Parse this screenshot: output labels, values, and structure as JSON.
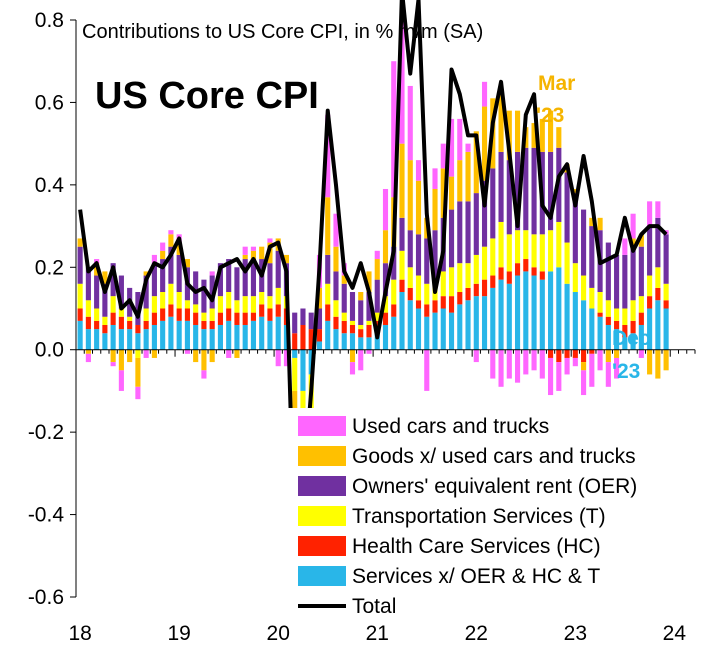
{
  "chart_data": {
    "type": "bar",
    "subtitle": "Contributions to US Core CPI, in % m/m (SA)",
    "title": "US Core CPI",
    "ylim": [
      -0.6,
      0.8
    ],
    "yticks": [
      "0.8",
      "0.6",
      "0.4",
      "0.2",
      "0.0",
      "-0.2",
      "-0.4",
      "-0.6"
    ],
    "ytick_values": [
      0.8,
      0.6,
      0.4,
      0.2,
      0.0,
      -0.2,
      -0.4,
      -0.6
    ],
    "xticks": [
      "18",
      "19",
      "20",
      "21",
      "22",
      "23",
      "24"
    ],
    "xtick_values": [
      0,
      12,
      24,
      36,
      48,
      60,
      72
    ],
    "xlim": [
      0,
      75
    ],
    "annotations": [
      {
        "text": "Mar",
        "color": "#f5b400"
      },
      {
        "text": "'23",
        "color": "#f5b400"
      },
      {
        "text": "Dec",
        "color": "#29b6e8"
      },
      {
        "text": "'23",
        "color": "#29b6e8"
      }
    ],
    "legend": [
      {
        "name": "Used cars and trucks",
        "color": "#ff66ff"
      },
      {
        "name": "Goods x/ used cars and trucks",
        "color": "#ffc000"
      },
      {
        "name": "Owners' equivalent rent (OER)",
        "color": "#7030a0"
      },
      {
        "name": "Transportation Services (T)",
        "color": "#ffff00"
      },
      {
        "name": "Health Care Services (HC)",
        "color": "#ff2200"
      },
      {
        "name": "Services x/ OER & HC & T",
        "color": "#29b6e8"
      },
      {
        "name": "Total",
        "color": "#000000"
      }
    ],
    "stack_order": [
      "Services x/ OER & HC & T",
      "Health Care Services (HC)",
      "Transportation Services (T)",
      "Owners' equivalent rent (OER)",
      "Goods x/ used cars and trucks",
      "Used cars and trucks"
    ],
    "x": [
      0,
      1,
      2,
      3,
      4,
      5,
      6,
      7,
      8,
      9,
      10,
      11,
      12,
      13,
      14,
      15,
      16,
      17,
      18,
      19,
      20,
      21,
      22,
      23,
      24,
      25,
      26,
      27,
      28,
      29,
      30,
      31,
      32,
      33,
      34,
      35,
      36,
      37,
      38,
      39,
      40,
      41,
      42,
      43,
      44,
      45,
      46,
      47,
      48,
      49,
      50,
      51,
      52,
      53,
      54,
      55,
      56,
      57,
      58,
      59,
      60,
      61,
      62,
      63,
      64,
      65,
      66,
      67,
      68,
      69,
      70,
      71
    ],
    "series": [
      {
        "name": "Services x/ OER & HC & T",
        "values": [
          0.07,
          0.05,
          0.05,
          0.04,
          0.06,
          0.05,
          0.05,
          0.04,
          0.05,
          0.06,
          0.07,
          0.08,
          0.07,
          0.07,
          0.06,
          0.05,
          0.05,
          0.06,
          0.07,
          0.06,
          0.06,
          0.07,
          0.08,
          0.07,
          0.08,
          0.06,
          -0.02,
          -0.1,
          -0.06,
          0.02,
          0.07,
          0.05,
          0.04,
          0.04,
          0.03,
          0.03,
          0.04,
          0.06,
          0.08,
          0.14,
          0.12,
          0.1,
          0.08,
          0.09,
          0.1,
          0.09,
          0.11,
          0.12,
          0.13,
          0.13,
          0.15,
          0.17,
          0.16,
          0.18,
          0.19,
          0.18,
          0.17,
          0.19,
          0.2,
          0.16,
          0.14,
          0.12,
          0.1,
          0.08,
          0.06,
          0.05,
          0.03,
          0.04,
          0.06,
          0.1,
          0.12,
          0.1
        ]
      },
      {
        "name": "Health Care Services (HC)",
        "values": [
          0.03,
          0.03,
          0.02,
          0.02,
          0.03,
          0.03,
          0.02,
          0.02,
          0.02,
          0.03,
          0.03,
          0.03,
          0.03,
          0.03,
          0.03,
          0.02,
          0.02,
          0.03,
          0.03,
          0.03,
          0.03,
          0.02,
          0.03,
          0.03,
          0.03,
          0.04,
          0.04,
          0.06,
          0.05,
          0.03,
          0.04,
          0.03,
          0.03,
          0.02,
          0.02,
          0.03,
          0.03,
          0.03,
          0.03,
          0.03,
          0.03,
          0.02,
          0.03,
          0.03,
          0.03,
          0.04,
          0.03,
          0.03,
          0.03,
          0.04,
          0.03,
          0.03,
          0.03,
          0.03,
          0.03,
          0.02,
          0.02,
          -0.02,
          -0.03,
          -0.02,
          -0.02,
          -0.03,
          -0.01,
          0.01,
          0.02,
          0.02,
          0.03,
          0.03,
          0.03,
          0.03,
          0.03,
          0.02
        ]
      },
      {
        "name": "Transportation Services (T)",
        "values": [
          0.06,
          0.04,
          0.03,
          0.02,
          0.04,
          0.02,
          0.01,
          -0.02,
          0.03,
          0.04,
          0.04,
          0.05,
          0.04,
          0.02,
          0.02,
          0.02,
          0.03,
          0.04,
          0.04,
          0.03,
          0.04,
          0.04,
          0.03,
          0.03,
          0.04,
          0.03,
          -0.08,
          -0.2,
          -0.1,
          0.0,
          0.05,
          0.04,
          0.02,
          0.01,
          0.01,
          0.01,
          0.02,
          0.04,
          0.06,
          0.07,
          0.05,
          0.06,
          0.05,
          0.05,
          0.06,
          0.07,
          0.07,
          0.06,
          0.07,
          0.08,
          0.09,
          0.11,
          0.09,
          0.08,
          0.07,
          0.08,
          0.09,
          0.1,
          0.11,
          0.1,
          0.07,
          0.06,
          0.05,
          0.05,
          0.04,
          0.03,
          0.04,
          0.05,
          0.04,
          0.05,
          0.05,
          0.04
        ]
      },
      {
        "name": "Owners' equivalent rent (OER)",
        "values": [
          0.09,
          0.08,
          0.08,
          0.08,
          0.08,
          0.08,
          0.07,
          0.08,
          0.08,
          0.08,
          0.08,
          0.09,
          0.09,
          0.08,
          0.08,
          0.08,
          0.08,
          0.08,
          0.08,
          0.08,
          0.09,
          0.09,
          0.08,
          0.08,
          0.09,
          0.08,
          0.05,
          0.04,
          0.04,
          0.05,
          0.07,
          0.07,
          0.07,
          0.07,
          0.06,
          0.07,
          0.08,
          0.08,
          0.08,
          0.08,
          0.09,
          0.1,
          0.11,
          0.12,
          0.13,
          0.14,
          0.15,
          0.15,
          0.15,
          0.16,
          0.17,
          0.17,
          0.18,
          0.19,
          0.2,
          0.21,
          0.2,
          0.19,
          0.18,
          0.17,
          0.17,
          0.16,
          0.15,
          0.15,
          0.14,
          0.13,
          0.13,
          0.13,
          0.12,
          0.12,
          0.12,
          0.12
        ]
      },
      {
        "name": "Goods x/ used cars and trucks",
        "values": [
          0.02,
          -0.01,
          0.03,
          0.03,
          -0.03,
          -0.05,
          -0.03,
          -0.07,
          0.01,
          -0.02,
          0.02,
          0.03,
          0.03,
          0.02,
          -0.03,
          -0.05,
          -0.03,
          0.0,
          0.0,
          -0.02,
          0.01,
          0.02,
          0.03,
          0.05,
          0.03,
          0.02,
          -0.1,
          -0.1,
          -0.05,
          0.05,
          0.14,
          0.06,
          0.02,
          -0.03,
          0.02,
          0.05,
          0.05,
          0.08,
          0.12,
          0.18,
          0.17,
          0.13,
          0.05,
          0.1,
          0.12,
          0.08,
          0.1,
          0.12,
          0.15,
          0.18,
          0.17,
          0.14,
          0.12,
          0.1,
          0.05,
          0.06,
          0.08,
          0.1,
          0.05,
          0.02,
          0.01,
          -0.02,
          0.02,
          0.03,
          -0.03,
          -0.02,
          0.0,
          0.02,
          0.03,
          -0.06,
          -0.07,
          -0.05
        ]
      },
      {
        "name": "Used cars and trucks",
        "values": [
          0.0,
          -0.02,
          0.01,
          0.0,
          -0.01,
          -0.05,
          0.0,
          -0.03,
          -0.02,
          0.02,
          0.02,
          0.01,
          0.02,
          -0.01,
          0.0,
          -0.02,
          0.01,
          0.0,
          -0.02,
          0.0,
          0.02,
          0.01,
          0.0,
          0.01,
          -0.04,
          -0.04,
          -0.05,
          -0.08,
          -0.04,
          0.08,
          0.2,
          0.08,
          0.03,
          -0.03,
          -0.05,
          -0.01,
          0.02,
          0.1,
          0.33,
          0.3,
          0.18,
          0.05,
          -0.1,
          0.05,
          0.06,
          0.14,
          0.1,
          0.02,
          -0.03,
          0.06,
          -0.07,
          -0.09,
          -0.07,
          -0.08,
          -0.06,
          -0.05,
          -0.07,
          -0.09,
          -0.07,
          -0.04,
          -0.02,
          -0.06,
          -0.08,
          -0.05,
          -0.06,
          -0.05,
          0.04,
          0.06,
          -0.02,
          0.06,
          0.04,
          0.01
        ]
      },
      {
        "name": "Total",
        "values": [
          0.34,
          0.19,
          0.21,
          0.14,
          0.2,
          0.1,
          0.12,
          0.08,
          0.17,
          0.21,
          0.2,
          0.23,
          0.27,
          0.16,
          0.14,
          0.15,
          0.12,
          0.2,
          0.21,
          0.22,
          0.19,
          0.22,
          0.18,
          0.25,
          0.26,
          0.19,
          -0.48,
          -0.35,
          -0.1,
          0.2,
          0.58,
          0.4,
          0.19,
          0.15,
          0.21,
          0.14,
          0.03,
          0.14,
          0.24,
          0.87,
          0.67,
          0.85,
          0.33,
          0.14,
          0.24,
          0.68,
          0.62,
          0.52,
          0.52,
          0.35,
          0.55,
          0.65,
          0.48,
          0.3,
          0.57,
          0.62,
          0.35,
          0.32,
          0.42,
          0.45,
          0.35,
          0.47,
          0.36,
          0.21,
          0.22,
          0.23,
          0.32,
          0.24,
          0.28,
          0.3,
          0.3,
          0.28
        ]
      }
    ]
  }
}
